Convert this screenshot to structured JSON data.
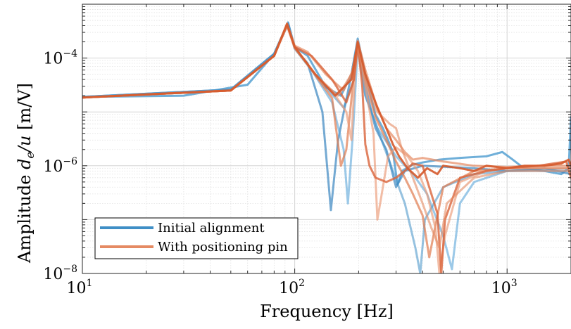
{
  "chart_data": {
    "type": "line",
    "xlabel": "Frequency [Hz]",
    "ylabel_prefix": "Amplitude ",
    "ylabel_math": "d",
    "ylabel_sub": "e",
    "ylabel_rest": "/u",
    "ylabel_unit": " [m/V]",
    "x_scale": "log",
    "y_scale": "log",
    "xlim": [
      10,
      2000
    ],
    "ylim": [
      1e-08,
      0.001
    ],
    "grid": true,
    "legend_position": "bottom-left",
    "x_ticks": [
      {
        "value": 10,
        "base": "10",
        "exp": "1"
      },
      {
        "value": 100,
        "base": "10",
        "exp": "2"
      },
      {
        "value": 1000,
        "base": "10",
        "exp": "3"
      }
    ],
    "y_ticks": [
      {
        "value": 1e-08,
        "base": "10",
        "exp": "−8"
      },
      {
        "value": 1e-06,
        "base": "10",
        "exp": "−6"
      },
      {
        "value": 0.0001,
        "base": "10",
        "exp": "−4"
      }
    ],
    "series": [
      {
        "name": "Initial alignment",
        "color": "#3f8fc6"
      },
      {
        "name": "With positioning pin",
        "color": "#e58a63"
      }
    ],
    "curves": [
      {
        "series": 0,
        "color": "#4b9bd0",
        "alpha": 0.8,
        "width": 3,
        "pts": [
          [
            10,
            1.9e-05
          ],
          [
            30,
            2e-05
          ],
          [
            60,
            3.2e-05
          ],
          [
            80,
            0.00012
          ],
          [
            93,
            0.00046
          ],
          [
            100,
            0.00016
          ],
          [
            115,
            0.00011
          ],
          [
            140,
            2.9e-05
          ],
          [
            165,
            2e-05
          ],
          [
            185,
            5e-05
          ],
          [
            198,
            0.00023
          ],
          [
            215,
            5e-05
          ],
          [
            240,
            9e-06
          ],
          [
            260,
            5e-06
          ],
          [
            275,
            3e-06
          ],
          [
            290,
            1.8e-06
          ],
          [
            305,
            4.5e-07
          ],
          [
            320,
            8e-07
          ],
          [
            360,
            1.05e-06
          ],
          [
            400,
            1.15e-06
          ],
          [
            480,
            1.3e-06
          ],
          [
            600,
            1.4e-06
          ],
          [
            800,
            1.5e-06
          ],
          [
            950,
            1.8e-06
          ],
          [
            1050,
            1.35e-06
          ],
          [
            1200,
            9e-07
          ],
          [
            1500,
            8e-07
          ],
          [
            1800,
            7e-07
          ],
          [
            1950,
            9e-07
          ],
          [
            2000,
            8e-06
          ]
        ]
      },
      {
        "series": 0,
        "color": "#3a86c0",
        "alpha": 0.7,
        "width": 3,
        "pts": [
          [
            10,
            1.9e-05
          ],
          [
            50,
            2.6e-05
          ],
          [
            80,
            0.00012
          ],
          [
            93,
            0.00044
          ],
          [
            100,
            0.00015
          ],
          [
            115,
            8e-05
          ],
          [
            135,
            1e-05
          ],
          [
            148,
            1.5e-07
          ],
          [
            160,
            3e-06
          ],
          [
            185,
            5e-05
          ],
          [
            198,
            0.0002
          ],
          [
            215,
            3e-05
          ],
          [
            240,
            5e-06
          ],
          [
            270,
            2e-06
          ],
          [
            300,
            4e-07
          ],
          [
            330,
            8e-07
          ],
          [
            400,
            1e-06
          ],
          [
            700,
            9e-07
          ],
          [
            1000,
            8e-07
          ],
          [
            1500,
            9e-07
          ],
          [
            2000,
            7e-07
          ]
        ]
      },
      {
        "series": 0,
        "color": "#5aa5d8",
        "alpha": 0.6,
        "width": 3,
        "pts": [
          [
            10,
            1.9e-05
          ],
          [
            50,
            2.6e-05
          ],
          [
            80,
            0.00012
          ],
          [
            93,
            0.00042
          ],
          [
            100,
            0.00015
          ],
          [
            120,
            6e-05
          ],
          [
            150,
            1.5e-05
          ],
          [
            170,
            2e-06
          ],
          [
            178,
            2e-07
          ],
          [
            188,
            4e-06
          ],
          [
            198,
            0.00016
          ],
          [
            215,
            2e-05
          ],
          [
            245,
            5e-06
          ],
          [
            300,
            1.5e-06
          ],
          [
            360,
            7e-07
          ],
          [
            420,
            3e-07
          ],
          [
            500,
            5e-08
          ],
          [
            550,
            1.2e-08
          ],
          [
            600,
            2e-07
          ],
          [
            700,
            5e-07
          ],
          [
            1000,
            8e-07
          ],
          [
            2000,
            8e-07
          ]
        ]
      },
      {
        "series": 0,
        "color": "#3f8fc6",
        "alpha": 0.55,
        "width": 3,
        "pts": [
          [
            10,
            1.9e-05
          ],
          [
            50,
            2.6e-05
          ],
          [
            80,
            0.00012
          ],
          [
            93,
            0.00043
          ],
          [
            100,
            0.00015
          ],
          [
            130,
            4e-05
          ],
          [
            170,
            1.2e-05
          ],
          [
            190,
            4e-05
          ],
          [
            198,
            0.00018
          ],
          [
            215,
            2e-05
          ],
          [
            250,
            4e-06
          ],
          [
            290,
            8e-07
          ],
          [
            330,
            2e-07
          ],
          [
            370,
            3e-08
          ],
          [
            390,
            1e-08
          ],
          [
            410,
            1e-07
          ],
          [
            500,
            4e-07
          ],
          [
            700,
            7e-07
          ],
          [
            1000,
            8e-07
          ],
          [
            2000,
            9e-07
          ]
        ]
      },
      {
        "series": 1,
        "color": "#e58a63",
        "alpha": 0.7,
        "width": 3,
        "pts": [
          [
            10,
            1.85e-05
          ],
          [
            50,
            2.5e-05
          ],
          [
            80,
            0.00011
          ],
          [
            92,
            0.00044
          ],
          [
            100,
            0.00017
          ],
          [
            115,
            0.00013
          ],
          [
            140,
            5e-05
          ],
          [
            170,
            2.5e-05
          ],
          [
            188,
            6e-05
          ],
          [
            198,
            0.00021
          ],
          [
            215,
            6e-05
          ],
          [
            240,
            1.5e-05
          ],
          [
            270,
            5e-06
          ],
          [
            300,
            3e-06
          ],
          [
            330,
            1.8e-06
          ],
          [
            360,
            1.3e-06
          ],
          [
            400,
            1.4e-06
          ],
          [
            500,
            1.2e-06
          ],
          [
            700,
            1e-06
          ],
          [
            1000,
            9.5e-07
          ],
          [
            1400,
            1e-06
          ],
          [
            1800,
            1e-06
          ],
          [
            2000,
            1e-06
          ]
        ]
      },
      {
        "series": 1,
        "color": "#e07a4f",
        "alpha": 0.7,
        "width": 3,
        "pts": [
          [
            10,
            1.85e-05
          ],
          [
            50,
            2.5e-05
          ],
          [
            80,
            0.00011
          ],
          [
            92,
            0.00042
          ],
          [
            100,
            0.00016
          ],
          [
            120,
            6e-05
          ],
          [
            150,
            1.8e-05
          ],
          [
            165,
            1e-06
          ],
          [
            175,
            2e-06
          ],
          [
            190,
            5e-05
          ],
          [
            198,
            0.00018
          ],
          [
            215,
            4e-05
          ],
          [
            240,
            8e-06
          ],
          [
            270,
            3e-06
          ],
          [
            300,
            1.2e-06
          ],
          [
            330,
            6e-07
          ],
          [
            360,
            3e-07
          ],
          [
            400,
            1.2e-07
          ],
          [
            430,
            2e-08
          ],
          [
            450,
            5e-08
          ],
          [
            500,
            4e-07
          ],
          [
            700,
            8e-07
          ],
          [
            1000,
            9e-07
          ],
          [
            2000,
            9e-07
          ]
        ]
      },
      {
        "series": 1,
        "color": "#eb9a77",
        "alpha": 0.65,
        "width": 3,
        "pts": [
          [
            10,
            1.85e-05
          ],
          [
            50,
            2.5e-05
          ],
          [
            80,
            0.00011
          ],
          [
            92,
            0.0004
          ],
          [
            100,
            0.00015
          ],
          [
            125,
            5e-05
          ],
          [
            150,
            2.5e-05
          ],
          [
            175,
            1e-05
          ],
          [
            185,
            3e-06
          ],
          [
            192,
            5e-05
          ],
          [
            198,
            0.00015
          ],
          [
            215,
            3e-05
          ],
          [
            235,
            4e-06
          ],
          [
            245,
            1e-07
          ],
          [
            255,
            2.5e-07
          ],
          [
            275,
            1.5e-06
          ],
          [
            300,
            2.2e-06
          ],
          [
            340,
            1.5e-06
          ],
          [
            380,
            8e-07
          ],
          [
            420,
            3e-07
          ],
          [
            460,
            7e-08
          ],
          [
            480,
            1e-08
          ],
          [
            510,
            5e-08
          ],
          [
            600,
            5e-07
          ],
          [
            800,
            8e-07
          ],
          [
            1000,
            9e-07
          ],
          [
            2000,
            9e-07
          ]
        ]
      },
      {
        "series": 1,
        "color": "#d9643b",
        "alpha": 0.8,
        "width": 3,
        "pts": [
          [
            10,
            1.85e-05
          ],
          [
            50,
            2.5e-05
          ],
          [
            80,
            0.00011
          ],
          [
            92,
            0.00041
          ],
          [
            100,
            0.00016
          ],
          [
            120,
            0.00011
          ],
          [
            150,
            4e-05
          ],
          [
            175,
            1.5e-05
          ],
          [
            190,
            4e-05
          ],
          [
            198,
            0.00019
          ],
          [
            208,
            3e-05
          ],
          [
            215,
            2.5e-06
          ],
          [
            225,
            1e-06
          ],
          [
            240,
            6e-07
          ],
          [
            270,
            5e-07
          ],
          [
            300,
            6e-07
          ],
          [
            330,
            8e-07
          ],
          [
            360,
            1.1e-06
          ],
          [
            400,
            1e-06
          ],
          [
            470,
            1.3e-07
          ],
          [
            490,
            1e-08
          ],
          [
            510,
            1e-07
          ],
          [
            600,
            6e-07
          ],
          [
            800,
            8e-07
          ],
          [
            1000,
            9e-07
          ],
          [
            1400,
            1e-06
          ],
          [
            1900,
            1.2e-06
          ],
          [
            2000,
            6e-07
          ]
        ]
      },
      {
        "series": 1,
        "color": "#e58a63",
        "alpha": 0.6,
        "width": 3,
        "pts": [
          [
            10,
            1.85e-05
          ],
          [
            50,
            2.5e-05
          ],
          [
            80,
            0.00011
          ],
          [
            92,
            0.0004
          ],
          [
            100,
            0.00016
          ],
          [
            130,
            4e-05
          ],
          [
            160,
            2e-05
          ],
          [
            185,
            5e-05
          ],
          [
            198,
            0.00017
          ],
          [
            215,
            4e-05
          ],
          [
            245,
            1e-05
          ],
          [
            280,
            6e-06
          ],
          [
            300,
            5e-06
          ],
          [
            320,
            2e-06
          ],
          [
            360,
            6e-07
          ],
          [
            400,
            2e-07
          ],
          [
            440,
            7e-08
          ],
          [
            480,
            3e-08
          ],
          [
            520,
            2e-07
          ],
          [
            700,
            6e-07
          ],
          [
            1000,
            8e-07
          ],
          [
            2000,
            8e-07
          ]
        ]
      },
      {
        "series": 1,
        "color": "#d55a2c",
        "alpha": 0.9,
        "width": 3,
        "pts": [
          [
            10,
            1.85e-05
          ],
          [
            50,
            2.5e-05
          ],
          [
            80,
            0.00011
          ],
          [
            92,
            0.00043
          ],
          [
            100,
            0.00016
          ],
          [
            125,
            5e-05
          ],
          [
            155,
            2e-05
          ],
          [
            185,
            4e-05
          ],
          [
            198,
            0.0002
          ],
          [
            215,
            5e-05
          ],
          [
            245,
            1.2e-05
          ],
          [
            270,
            5e-06
          ],
          [
            290,
            2.5e-06
          ],
          [
            310,
            1.5e-06
          ],
          [
            340,
            9e-07
          ],
          [
            380,
            6e-07
          ],
          [
            420,
            9e-07
          ],
          [
            470,
            7e-07
          ],
          [
            500,
            1e-06
          ],
          [
            600,
            9e-07
          ],
          [
            700,
            8e-07
          ],
          [
            800,
            1e-06
          ],
          [
            1000,
            9e-07
          ],
          [
            1200,
            1e-06
          ],
          [
            1500,
            1e-06
          ],
          [
            1800,
            1.1e-06
          ],
          [
            1950,
            1.3e-06
          ],
          [
            2000,
            1e-06
          ]
        ]
      }
    ]
  }
}
